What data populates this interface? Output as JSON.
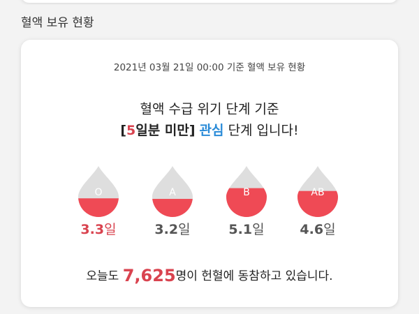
{
  "section_title": "혈액 보유 현황",
  "status": {
    "date_line": "2021년 03월 21일  00:00 기준 혈액 보유 현황",
    "headline_1": "혈액 수급 위기 단계 기준",
    "headline_2": {
      "open": "[",
      "days": "5",
      "rest": "일분 미만]",
      "level": "관심",
      "end": "단계 입니다!"
    },
    "items": [
      {
        "blood_type": "O",
        "days": 3.3,
        "unit": "일"
      },
      {
        "blood_type": "A",
        "days": 3.2,
        "unit": "일"
      },
      {
        "blood_type": "B",
        "days": 5.1,
        "unit": "일"
      },
      {
        "blood_type": "AB",
        "days": 4.6,
        "unit": "일"
      }
    ],
    "donors": {
      "before": "오늘도 ",
      "count": "7,625",
      "after": "명이 헌혈에 동참하고 있습니다."
    }
  }
}
